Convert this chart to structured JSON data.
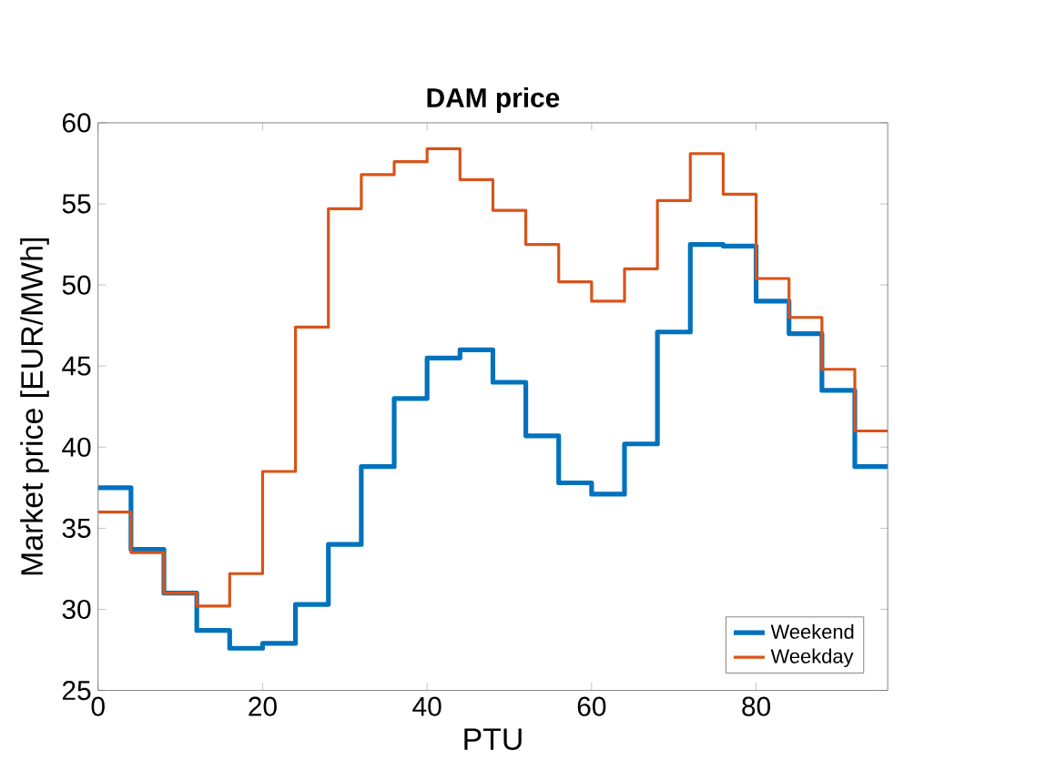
{
  "chart_data": {
    "type": "step",
    "title": "DAM price",
    "xlabel": "PTU",
    "ylabel": "Market price [EUR/MWh]",
    "x": [
      0,
      4,
      8,
      12,
      16,
      20,
      24,
      28,
      32,
      36,
      40,
      44,
      48,
      52,
      56,
      60,
      64,
      68,
      72,
      76,
      80,
      84,
      88,
      92,
      96
    ],
    "series": [
      {
        "name": "Weekend",
        "color": "#0072bd",
        "values": [
          37.5,
          33.7,
          31,
          28.7,
          27.6,
          27.9,
          30.3,
          34,
          38.8,
          43,
          45.5,
          46,
          44,
          40.7,
          37.8,
          37.1,
          40.2,
          47.1,
          52.5,
          52.4,
          49,
          47,
          43.5,
          38.8,
          38.8
        ]
      },
      {
        "name": "Weekday",
        "color": "#d95319",
        "values": [
          36,
          33.5,
          31,
          30.2,
          32.2,
          38.5,
          47.4,
          54.7,
          56.8,
          57.6,
          58.4,
          56.5,
          54.6,
          52.5,
          50.2,
          49,
          51,
          55.2,
          58.1,
          55.6,
          50.4,
          48,
          44.8,
          41,
          41
        ]
      }
    ],
    "xlim": [
      0,
      96
    ],
    "ylim": [
      25,
      60
    ],
    "xticks": [
      0,
      20,
      40,
      60,
      80
    ],
    "yticks": [
      25,
      30,
      35,
      40,
      45,
      50,
      55,
      60
    ],
    "legend": "bottom right",
    "grid": false,
    "line_style": "solid"
  }
}
